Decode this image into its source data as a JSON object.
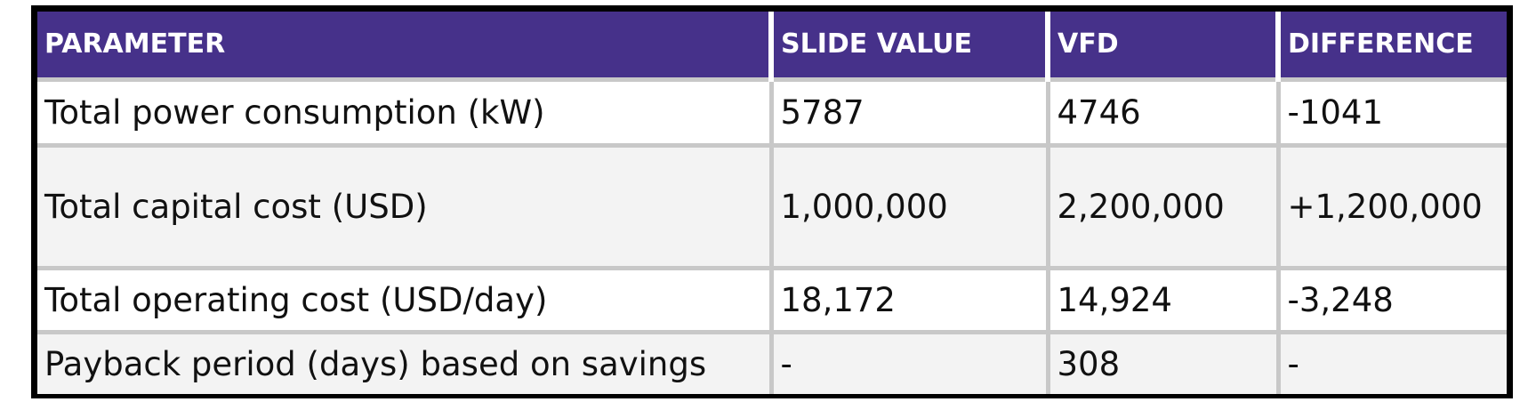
{
  "table": {
    "header": [
      "PARAMETER",
      "SLIDE VALUE",
      "VFD",
      "DIFFERENCE"
    ],
    "rows": [
      [
        "Total power consumption (kW)",
        "5787",
        "4746",
        "-1041"
      ],
      [
        "Total capital cost (USD)",
        "1,000,000",
        "2,200,000",
        "+1,200,000"
      ],
      [
        "Total operating cost (USD/day)",
        "18,172",
        "14,924",
        "-3,248"
      ],
      [
        "Payback period (days) based on savings",
        "-",
        "308",
        "-"
      ]
    ]
  }
}
